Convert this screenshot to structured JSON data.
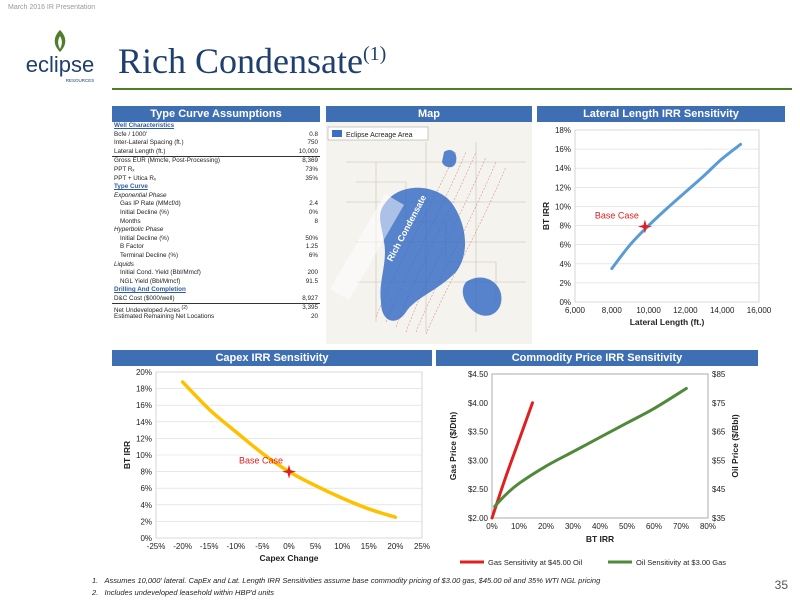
{
  "header": {
    "date_note": "March 2016 IR Presentation",
    "title": "Rich Condensate",
    "title_sup": "(1)"
  },
  "logo": {
    "name": "eclipse",
    "sub": "RESOURCES"
  },
  "colors": {
    "panel_header": "#3f6fb3",
    "accent_green": "#4f7d2c",
    "line_blue": "#5b9bd5",
    "line_orange": "#ffc000",
    "gas_red": "#e02020",
    "oil_green": "#4f8a3a",
    "base_case_red": "#e02020"
  },
  "type_curve": {
    "header": "Type Curve Assumptions",
    "rows": [
      {
        "label": "Well Characteristics",
        "value": "",
        "style": "sec"
      },
      {
        "label": "Bcfe / 1000'",
        "value": "0.8",
        "style": ""
      },
      {
        "label": "Inter-Lateral Spacing (ft.)",
        "value": "750",
        "style": ""
      },
      {
        "label": "Lateral Length (ft.)",
        "value": "10,000",
        "style": ""
      },
      {
        "label": "Gross EUR (Mmcfe, Post-Processing)",
        "value": "8,369",
        "style": "bt"
      },
      {
        "label": "PPT Rₓ",
        "value": "73%",
        "style": ""
      },
      {
        "label": "PPT + Utica Rₓ",
        "value": "35%",
        "style": ""
      },
      {
        "label": "Type Curve",
        "value": "",
        "style": "sec"
      },
      {
        "label": "Exponential Phase",
        "value": "",
        "style": "sub"
      },
      {
        "label": "Gas IP Rate (MMcf/d)",
        "value": "2.4",
        "style": "ind"
      },
      {
        "label": "Initial Decline (%)",
        "value": "0%",
        "style": "ind"
      },
      {
        "label": "Months",
        "value": "8",
        "style": "ind"
      },
      {
        "label": "Hyperbolic Phase",
        "value": "",
        "style": "sub"
      },
      {
        "label": "Initial Decline (%)",
        "value": "50%",
        "style": "ind"
      },
      {
        "label": "B Factor",
        "value": "1.25",
        "style": "ind"
      },
      {
        "label": "Terminal Decline (%)",
        "value": "6%",
        "style": "ind"
      },
      {
        "label": "Liquids",
        "value": "",
        "style": "sub"
      },
      {
        "label": "Initial Cond. Yield (Bbl/Mmcf)",
        "value": "200",
        "style": "ind"
      },
      {
        "label": "NGL Yield (Bbl/Mmcf)",
        "value": "91.5",
        "style": "ind"
      },
      {
        "label": "Drilling And Completion",
        "value": "",
        "style": "sec"
      },
      {
        "label": "D&C Cost ($000/well)",
        "value": "8,927",
        "style": ""
      },
      {
        "label": "Net Undeveloped Acres",
        "label_sup": "(2)",
        "value": "3,395",
        "style": "bt"
      },
      {
        "label": "Estimated Remaining Net Locations",
        "value": "20",
        "style": ""
      }
    ]
  },
  "map": {
    "header": "Map",
    "legend": "Eclipse Acreage Area",
    "label": "Rich Condensate"
  },
  "chart_data": [
    {
      "id": "lateral",
      "type": "line",
      "title": "Lateral Length IRR Sensitivity",
      "xlabel": "Lateral Length (ft.)",
      "ylabel": "BT IRR",
      "xlim": [
        6000,
        16000
      ],
      "ylim": [
        0,
        18
      ],
      "xticks": [
        "6,000",
        "8,000",
        "10,000",
        "12,000",
        "14,000",
        "16,000"
      ],
      "yticks": [
        "0%",
        "2%",
        "4%",
        "6%",
        "8%",
        "10%",
        "12%",
        "14%",
        "16%",
        "18%"
      ],
      "grid": true,
      "series": [
        {
          "x": [
            8000,
            9000,
            10000,
            11000,
            12000,
            13000,
            14000,
            15000
          ],
          "y": [
            3.5,
            6.0,
            8.0,
            9.8,
            11.5,
            13.2,
            15.0,
            16.5
          ]
        }
      ],
      "annotation": {
        "label": "Base Case",
        "x": 9800,
        "y": 7.9
      }
    },
    {
      "id": "capex",
      "type": "line",
      "title": "Capex IRR Sensitivity",
      "xlabel": "Capex Change",
      "ylabel": "BT IRR",
      "xlim": [
        -25,
        25
      ],
      "ylim": [
        0,
        20
      ],
      "xticks": [
        "-25%",
        "-20%",
        "-15%",
        "-10%",
        "-5%",
        "0%",
        "5%",
        "10%",
        "15%",
        "20%",
        "25%"
      ],
      "yticks": [
        "0%",
        "2%",
        "4%",
        "6%",
        "8%",
        "10%",
        "12%",
        "14%",
        "16%",
        "18%",
        "20%"
      ],
      "grid": true,
      "series": [
        {
          "x": [
            -20,
            -15,
            -10,
            -5,
            0,
            5,
            10,
            15,
            20
          ],
          "y": [
            18.8,
            15.5,
            12.8,
            10.2,
            8.0,
            6.3,
            4.8,
            3.5,
            2.5
          ]
        }
      ],
      "annotation": {
        "label": "Base Case",
        "x": 0,
        "y": 8.0
      }
    },
    {
      "id": "commodity",
      "type": "line",
      "title": "Commodity Price IRR Sensitivity",
      "xlabel": "BT IRR",
      "ylabel": "Gas Price ($/Dth)",
      "ylabel2": "Oil Price ($/Bbl)",
      "xlim": [
        0,
        80
      ],
      "ylim": [
        2.0,
        4.5
      ],
      "ylim2": [
        35,
        85
      ],
      "xticks": [
        "0%",
        "10%",
        "20%",
        "30%",
        "40%",
        "50%",
        "60%",
        "70%",
        "80%"
      ],
      "yticks": [
        "$2.00",
        "$2.50",
        "$3.00",
        "$3.50",
        "$4.00",
        "$4.50"
      ],
      "yticks2": [
        "$35",
        "$45",
        "$55",
        "$65",
        "$75",
        "$85"
      ],
      "grid": false,
      "legend": "bottom",
      "series": [
        {
          "name": "Gas Sensitivity at $45.00 Oil",
          "axis": "left",
          "x": [
            0,
            5,
            10,
            15
          ],
          "y": [
            2.0,
            2.7,
            3.35,
            4.0
          ]
        },
        {
          "name": "Oil Sensitivity at $3.00 Gas",
          "axis": "right",
          "x": [
            1,
            5,
            10,
            20,
            30,
            40,
            50,
            60,
            72
          ],
          "y": [
            39,
            43,
            47,
            53,
            58,
            63,
            68,
            73,
            80
          ]
        }
      ]
    }
  ],
  "footnotes": [
    {
      "num": "1.",
      "text": "Assumes 10,000' lateral. CapEx and Lat. Length IRR Sensitivities assume base commodity pricing of $3.00 gas, $45.00 oil and 35% WTI NGL pricing"
    },
    {
      "num": "2.",
      "text": "Includes undeveloped leasehold within HBP'd units"
    }
  ],
  "page_number": "35"
}
